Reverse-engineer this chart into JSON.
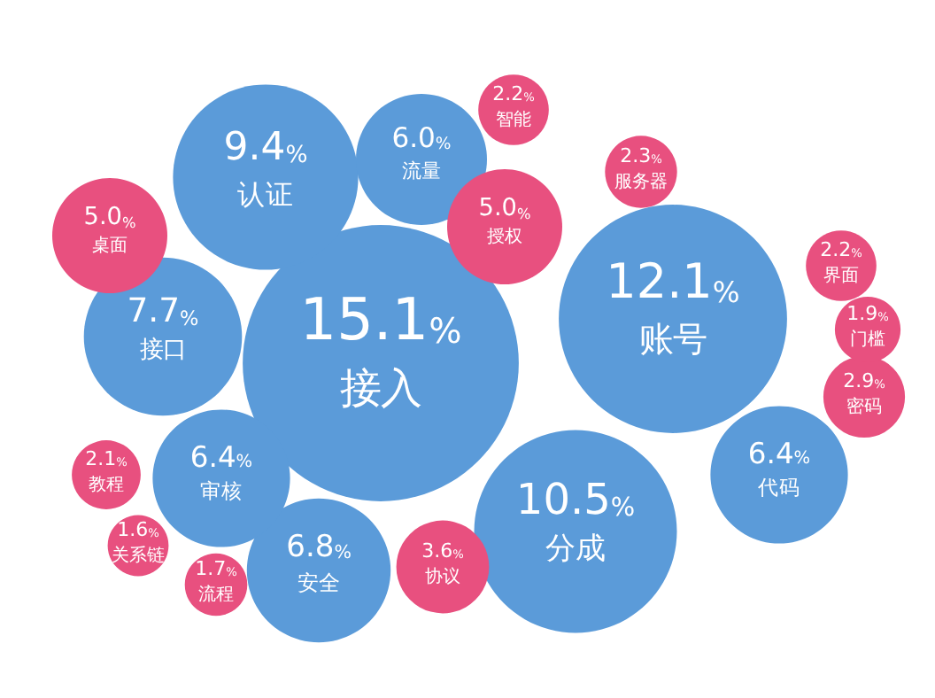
{
  "chart_data": {
    "type": "other",
    "categories": [
      "接入",
      "账号",
      "分成",
      "认证",
      "接口",
      "安全",
      "审核",
      "代码",
      "流量",
      "桌面",
      "授权",
      "协议",
      "密码",
      "服务器",
      "智能",
      "界面",
      "教程",
      "门槛",
      "流程",
      "关系链"
    ],
    "values": [
      15.1,
      12.1,
      10.5,
      9.4,
      7.7,
      6.8,
      6.4,
      6.4,
      6.0,
      5.0,
      5.0,
      3.6,
      2.9,
      2.3,
      2.2,
      2.2,
      2.1,
      1.9,
      1.7,
      1.6
    ],
    "value_labels": [
      "15.1%",
      "12.1%",
      "10.5%",
      "9.4%",
      "7.7%",
      "6.8%",
      "6.4%",
      "6.4%",
      "6.0%",
      "5.0%",
      "5.0%",
      "3.6%",
      "2.9%",
      "2.3%",
      "2.2%",
      "2.2%",
      "2.1%",
      "1.9%",
      "1.7%",
      "1.6%"
    ],
    "colors": [
      "#5b9bd9",
      "#5b9bd9",
      "#5b9bd9",
      "#5b9bd9",
      "#5b9bd9",
      "#5b9bd9",
      "#5b9bd9",
      "#5b9bd9",
      "#5b9bd9",
      "#e8507f",
      "#e8507f",
      "#e8507f",
      "#e8507f",
      "#e8507f",
      "#e8507f",
      "#e8507f",
      "#e8507f",
      "#e8507f",
      "#e8507f",
      "#e8507f"
    ]
  }
}
